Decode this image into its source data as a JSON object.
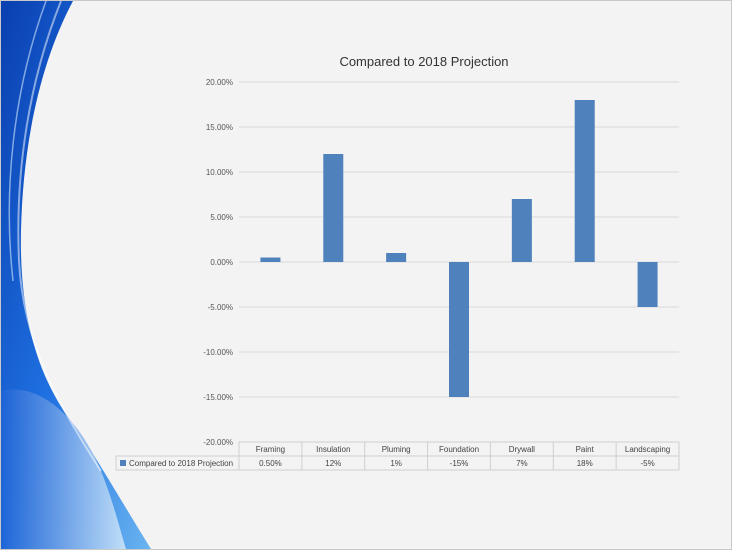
{
  "chart_data": {
    "type": "bar",
    "title": "Compared to 2018 Projection",
    "categories": [
      "Framing",
      "Insulation",
      "Pluming",
      "Foundation",
      "Drywall",
      "Paint",
      "Landscaping"
    ],
    "series": [
      {
        "name": "Compared to 2018 Projection",
        "values": [
          0.5,
          12,
          1,
          -15,
          7,
          18,
          -5
        ],
        "table_labels": [
          "0.50%",
          "12%",
          "1%",
          "-15%",
          "7%",
          "18%",
          "-5%"
        ]
      }
    ],
    "y_ticks": [
      "20.00%",
      "15.00%",
      "10.00%",
      "5.00%",
      "0.00%",
      "-5.00%",
      "-10.00%",
      "-15.00%",
      "-20.00%"
    ],
    "ylim": [
      -20,
      20
    ],
    "grid": true,
    "legend": "data-table",
    "colors": {
      "bar": "#4f81bd"
    }
  }
}
